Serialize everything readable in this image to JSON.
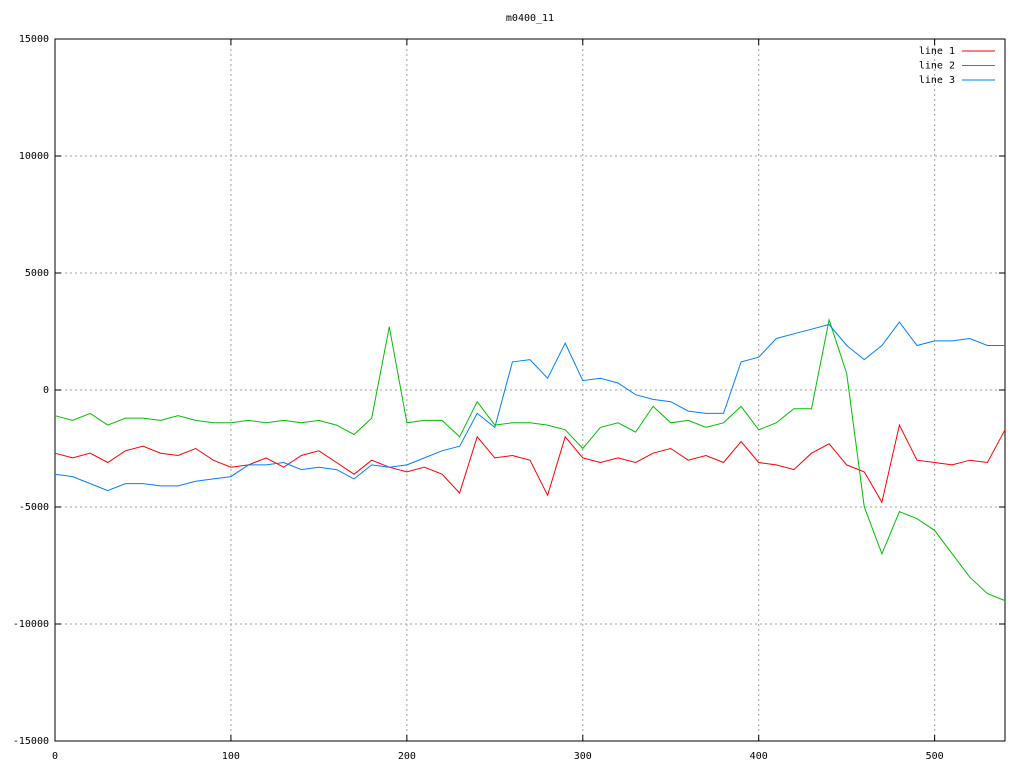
{
  "chart_data": {
    "type": "line",
    "title": "m0400_11",
    "x": [
      0,
      10,
      20,
      30,
      40,
      50,
      60,
      70,
      80,
      90,
      100,
      110,
      120,
      130,
      140,
      150,
      160,
      170,
      180,
      190,
      200,
      210,
      220,
      230,
      240,
      250,
      260,
      270,
      280,
      290,
      300,
      310,
      320,
      330,
      340,
      350,
      360,
      370,
      380,
      390,
      400,
      410,
      420,
      430,
      440,
      450,
      460,
      470,
      480,
      490,
      500,
      510,
      520,
      530,
      540
    ],
    "series": [
      {
        "name": "line 1",
        "color": "#ff0000",
        "values": [
          -2700,
          -2900,
          -2700,
          -3100,
          -2600,
          -2400,
          -2700,
          -2800,
          -2500,
          -3000,
          -3300,
          -3200,
          -2900,
          -3300,
          -2800,
          -2600,
          -3100,
          -3600,
          -3000,
          -3300,
          -3500,
          -3300,
          -3600,
          -4400,
          -2000,
          -2900,
          -2800,
          -3000,
          -4500,
          -2000,
          -2900,
          -3100,
          -2900,
          -3100,
          -2700,
          -2500,
          -3000,
          -2800,
          -3100,
          -2200,
          -3100,
          -3200,
          -3400,
          -2700,
          -2300,
          -3200,
          -3500,
          -4800,
          -1500,
          -3000,
          -3100,
          -3200,
          -3000,
          -3100,
          -1700
        ]
      },
      {
        "name": "line 2",
        "color": "#00c000",
        "values": [
          -1100,
          -1300,
          -1000,
          -1500,
          -1200,
          -1200,
          -1300,
          -1100,
          -1300,
          -1400,
          -1400,
          -1300,
          -1400,
          -1300,
          -1400,
          -1300,
          -1500,
          -1900,
          -1200,
          2700,
          -1400,
          -1300,
          -1300,
          -2000,
          -500,
          -1500,
          -1400,
          -1400,
          -1500,
          -1700,
          -2500,
          -1600,
          -1400,
          -1800,
          -700,
          -1400,
          -1300,
          -1600,
          -1400,
          -700,
          -1700,
          -1400,
          -800,
          -800,
          3000,
          700,
          -5000,
          -7000,
          -5200,
          -5500,
          -6000,
          -7000,
          -8000,
          -8700,
          -9000
        ]
      },
      {
        "name": "line 3",
        "color": "#0080ff",
        "values": [
          -3600,
          -3700,
          -4000,
          -4300,
          -4000,
          -4000,
          -4100,
          -4100,
          -3900,
          -3800,
          -3700,
          -3200,
          -3200,
          -3100,
          -3400,
          -3300,
          -3400,
          -3800,
          -3200,
          -3300,
          -3200,
          -2900,
          -2600,
          -2400,
          -1000,
          -1600,
          1200,
          1300,
          500,
          2000,
          400,
          500,
          300,
          -200,
          -400,
          -500,
          -900,
          -1000,
          -1000,
          1200,
          1400,
          2200,
          2400,
          2600,
          2800,
          1900,
          1300,
          1900,
          2900,
          1900,
          2100,
          2100,
          2200,
          1900,
          1900
        ]
      }
    ],
    "xlim": [
      0,
      540
    ],
    "xticks": [
      0,
      100,
      200,
      300,
      400,
      500
    ],
    "ylim": [
      -15000,
      15000
    ],
    "yticks": [
      -15000,
      -10000,
      -5000,
      0,
      5000,
      10000,
      15000
    ],
    "grid": true,
    "legend": "top-right"
  }
}
